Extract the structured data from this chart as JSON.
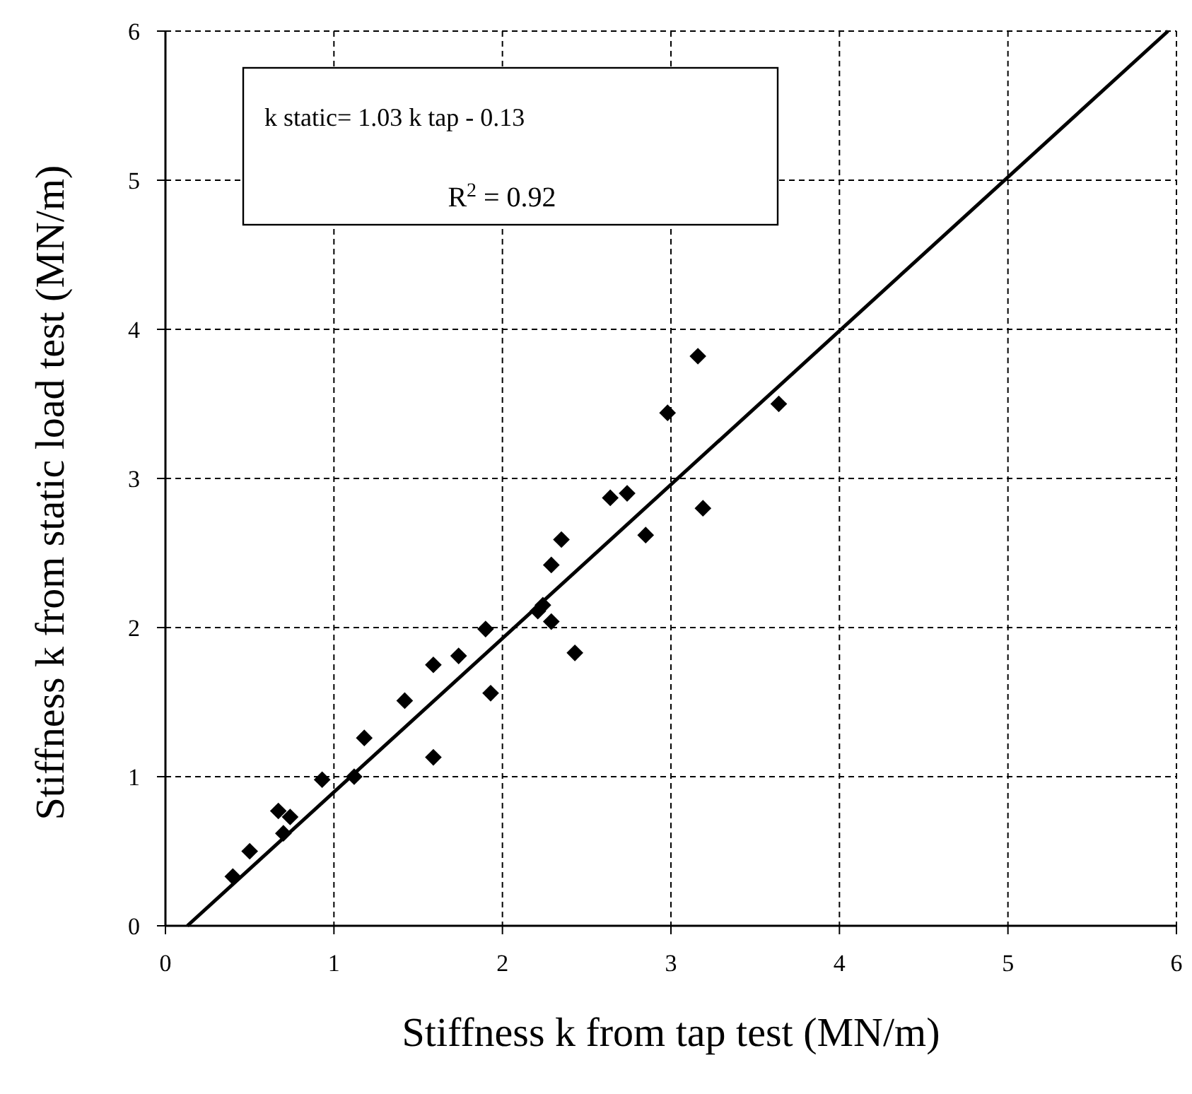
{
  "chart_data": {
    "type": "scatter",
    "xlabel": "Stiffness k from tap test (MN/m)",
    "ylabel": "Stiffness k from static load test (MN/m)",
    "annotations": [
      "k static= 1.03 k tap - 0.13",
      "R$^{2}$ = 0.92"
    ],
    "xlim": [
      0,
      6
    ],
    "ylim": [
      0,
      6
    ],
    "xticks": [
      0,
      1,
      2,
      3,
      4,
      5,
      6
    ],
    "yticks": [
      0,
      1,
      2,
      3,
      4,
      5,
      6
    ],
    "grid": true,
    "marker": "diamond",
    "series": [
      {
        "color": "#000000",
        "x": [
          0.4,
          0.5,
          0.67,
          0.74,
          0.7,
          0.93,
          1.12,
          1.18,
          1.42,
          1.59,
          1.59,
          1.74,
          1.9,
          1.93,
          2.21,
          2.24,
          2.29,
          2.29,
          2.35,
          2.43,
          2.64,
          2.74,
          2.85,
          3.19,
          3.16,
          3.64,
          2.98
        ],
        "values": [
          0.33,
          0.5,
          0.77,
          0.73,
          0.62,
          0.98,
          1.0,
          1.26,
          1.51,
          1.13,
          1.75,
          1.81,
          1.99,
          1.56,
          2.11,
          2.15,
          2.04,
          2.42,
          2.59,
          1.83,
          2.87,
          2.9,
          2.62,
          2.8,
          3.82,
          3.5,
          3.44
        ]
      },
      {
        "type": "line",
        "color": "#000000",
        "line_style": "solid",
        "marker": "none",
        "x": [
          0.13,
          5.95
        ],
        "values": [
          0,
          6
        ]
      }
    ]
  }
}
